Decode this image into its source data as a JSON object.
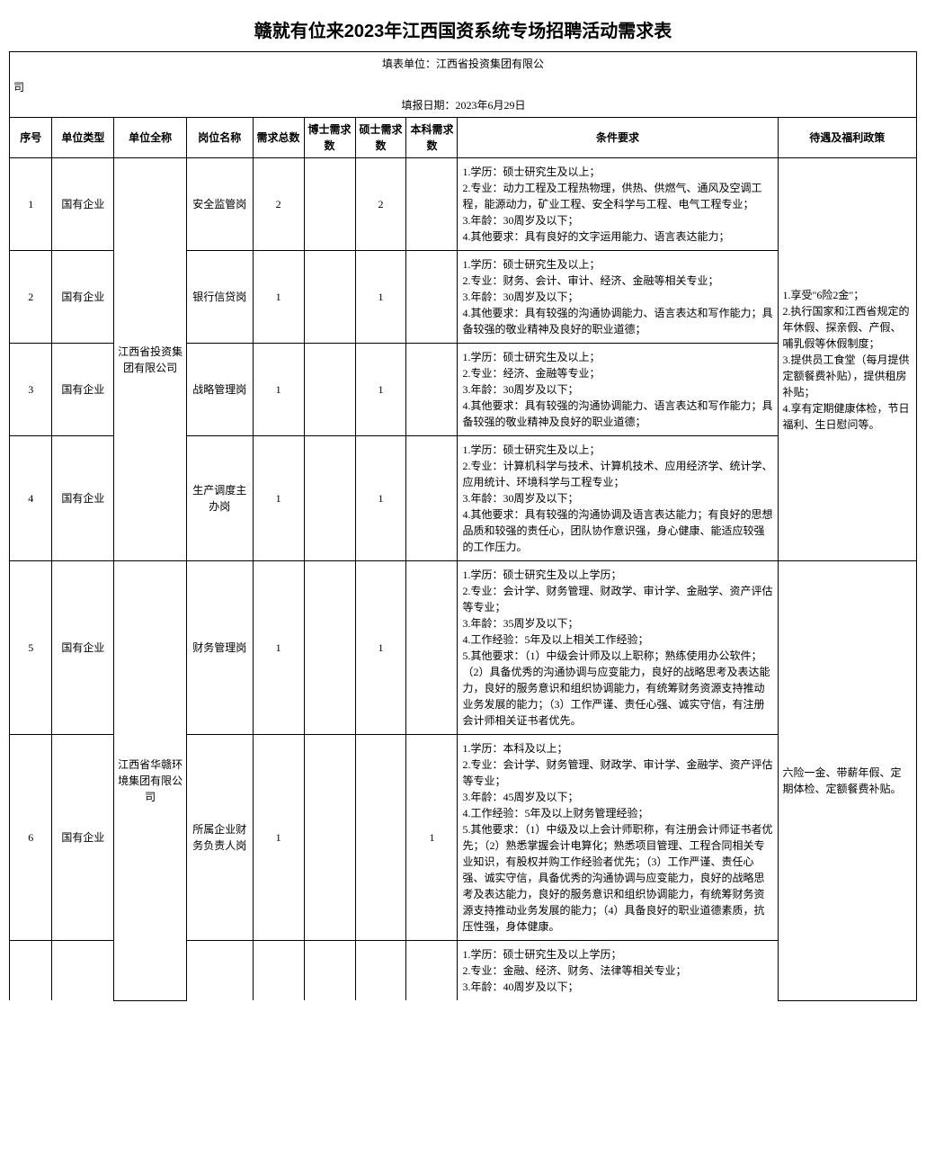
{
  "page_title": "赣就有位来2023年江西国资系统专场招聘活动需求表",
  "form_unit_label": "填表单位：江西省投资集团有限公",
  "form_unit_suffix": "司",
  "report_date": "填报日期：2023年6月29日",
  "columns": {
    "seq": "序号",
    "unit_type": "单位类型",
    "unit_name": "单位全称",
    "position": "岗位名称",
    "total": "需求总数",
    "phd": "博士需求数",
    "master": "硕士需求数",
    "bachelor": "本科需求数",
    "requirement": "条件要求",
    "benefit": "待遇及福利政策"
  },
  "company1": "江西省投资集团有限公司",
  "company2": "江西省华赣环境集团有限公司",
  "benefit1": "1.享受\"6险2金\"；\n2.执行国家和江西省规定的年休假、探亲假、产假、哺乳假等休假制度；\n3.提供员工食堂（每月提供定额餐费补贴），提供租房补贴；\n4.享有定期健康体检，节日福利、生日慰问等。",
  "benefit2": "六险一金、带薪年假、定期体检、定额餐费补贴。",
  "rows": [
    {
      "seq": "1",
      "unit_type": "国有企业",
      "position": "安全监管岗",
      "total": "2",
      "phd": "",
      "master": "2",
      "bachelor": "",
      "requirement": "1.学历：硕士研究生及以上；\n2.专业：动力工程及工程热物理，供热、供燃气、通风及空调工程，能源动力，矿业工程、安全科学与工程、电气工程专业；\n3.年龄：30周岁及以下；\n4.其他要求：具有良好的文字运用能力、语言表达能力；"
    },
    {
      "seq": "2",
      "unit_type": "国有企业",
      "position": "银行信贷岗",
      "total": "1",
      "phd": "",
      "master": "1",
      "bachelor": "",
      "requirement": "1.学历：硕士研究生及以上；\n2.专业：财务、会计、审计、经济、金融等相关专业；\n3.年龄：30周岁及以下；\n4.其他要求：具有较强的沟通协调能力、语言表达和写作能力；具备较强的敬业精神及良好的职业道德；"
    },
    {
      "seq": "3",
      "unit_type": "国有企业",
      "position": "战略管理岗",
      "total": "1",
      "phd": "",
      "master": "1",
      "bachelor": "",
      "requirement": "1.学历：硕士研究生及以上；\n2.专业：经济、金融等专业；\n3.年龄：30周岁及以下；\n4.其他要求：具有较强的沟通协调能力、语言表达和写作能力；具备较强的敬业精神及良好的职业道德；"
    },
    {
      "seq": "4",
      "unit_type": "国有企业",
      "position": "生产调度主办岗",
      "total": "1",
      "phd": "",
      "master": "1",
      "bachelor": "",
      "requirement": "1.学历：硕士研究生及以上；\n2.专业：计算机科学与技术、计算机技术、应用经济学、统计学、应用统计、环境科学与工程专业；\n3.年龄：30周岁及以下；\n4.其他要求：具有较强的沟通协调及语言表达能力；有良好的思想品质和较强的责任心，团队协作意识强，身心健康、能适应较强的工作压力。"
    },
    {
      "seq": "5",
      "unit_type": "国有企业",
      "position": "财务管理岗",
      "total": "1",
      "phd": "",
      "master": "1",
      "bachelor": "",
      "requirement": "1.学历：硕士研究生及以上学历；\n2.专业：会计学、财务管理、财政学、审计学、金融学、资产评估等专业；\n3.年龄：35周岁及以下；\n4.工作经验：5年及以上相关工作经验；\n5.其他要求：（1）中级会计师及以上职称；熟练使用办公软件；（2）具备优秀的沟通协调与应变能力，良好的战略思考及表达能力，良好的服务意识和组织协调能力，有统筹财务资源支持推动业务发展的能力；（3）工作严谨、责任心强、诚实守信，有注册会计师相关证书者优先。"
    },
    {
      "seq": "6",
      "unit_type": "国有企业",
      "position": "所属企业财务负责人岗",
      "total": "1",
      "phd": "",
      "master": "",
      "bachelor": "1",
      "requirement": "1.学历：本科及以上；\n2.专业：会计学、财务管理、财政学、审计学、金融学、资产评估等专业；\n3.年龄：45周岁及以下；\n4.工作经验：5年及以上财务管理经验；\n5.其他要求：（1）中级及以上会计师职称，有注册会计师证书者优先；（2）熟悉掌握会计电算化；熟悉项目管理、工程合同相关专业知识，有股权并购工作经验者优先；（3）工作严谨、责任心强、诚实守信，具备优秀的沟通协调与应变能力，良好的战略思考及表达能力，良好的服务意识和组织协调能力，有统筹财务资源支持推动业务发展的能力；（4）具备良好的职业道德素质，抗压性强，身体健康。"
    },
    {
      "seq": "",
      "unit_type": "",
      "position": "",
      "total": "",
      "phd": "",
      "master": "",
      "bachelor": "",
      "requirement": "1.学历：硕士研究生及以上学历；\n2.专业：金融、经济、财务、法律等相关专业；\n3.年龄：40周岁及以下；"
    }
  ]
}
